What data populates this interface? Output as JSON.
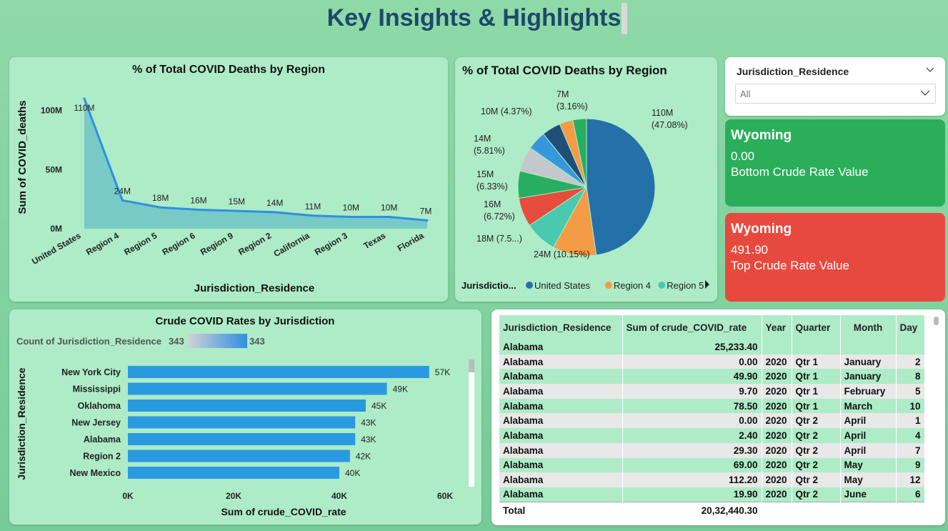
{
  "page": {
    "title": "Key Insights & Highlights"
  },
  "area_chart": {
    "chart_data": {
      "type": "area",
      "title": "% of Total COVID Deaths by Region",
      "xlabel": "Jurisdiction_Residence",
      "ylabel": "Sum of COVID_deaths",
      "categories": [
        "United States",
        "Region 4",
        "Region 5",
        "Region 6",
        "Region 9",
        "Region 2",
        "California",
        "Region 3",
        "Texas",
        "Florida"
      ],
      "values": [
        110,
        24,
        18,
        16,
        15,
        14,
        11,
        10,
        10,
        7
      ],
      "value_labels": [
        "110M",
        "24M",
        "18M",
        "16M",
        "15M",
        "14M",
        "11M",
        "10M",
        "10M",
        "7M"
      ],
      "yticks": [
        "0M",
        "50M",
        "100M"
      ],
      "ylim": [
        0,
        110
      ],
      "unit": "M"
    }
  },
  "pie_chart": {
    "chart_data": {
      "type": "pie",
      "title": "% of Total COVID Deaths by Region",
      "slices": [
        {
          "label": "110M",
          "pct": "(47.08%)",
          "value": 47.08,
          "color": "#2371a8"
        },
        {
          "label": "24M (10.15%)",
          "pct": "",
          "value": 10.15,
          "color": "#f39c45"
        },
        {
          "label": "18M (7.5...)",
          "pct": "",
          "value": 7.5,
          "color": "#48c9b0"
        },
        {
          "label": "16M",
          "pct": "(6.72%)",
          "value": 6.72,
          "color": "#e74c3c"
        },
        {
          "label": "15M",
          "pct": "(6.33%)",
          "value": 6.33,
          "color": "#27ae60"
        },
        {
          "label": "14M",
          "pct": "(5.81%)",
          "value": 5.81,
          "color": "#c3c8cc"
        },
        {
          "label": "10M (4.37%)",
          "pct": "",
          "value": 4.37,
          "color": "#3498db"
        },
        {
          "label": "10M",
          "pct": "",
          "value": 4.37,
          "color": "#1f4e79"
        },
        {
          "label": "7M",
          "pct": "(3.16%)",
          "value": 3.16,
          "color": "#f39c45"
        },
        {
          "label": "",
          "pct": "",
          "value": 3.16,
          "color": "#27ae60"
        }
      ],
      "legend_title": "Jurisdictio...",
      "legend": [
        {
          "name": "United States",
          "color": "#2371a8"
        },
        {
          "name": "Region 4",
          "color": "#f39c45"
        },
        {
          "name": "Region 5",
          "color": "#48c9b0"
        }
      ]
    }
  },
  "slicer": {
    "title": "Jurisdiction_Residence",
    "value": "All"
  },
  "cards": {
    "bottom": {
      "name": "Wyoming",
      "value": "0.00",
      "label": "Bottom Crude Rate Value"
    },
    "top": {
      "name": "Wyoming",
      "value": "491.90",
      "label": "Top Crude Rate Value"
    }
  },
  "bar_chart": {
    "chart_data": {
      "type": "bar",
      "title": "Crude COVID Rates by Jurisdiction",
      "xlabel": "Sum of crude_COVID_rate",
      "ylabel": "Jurisdiction_Residence",
      "categories": [
        "New York City",
        "Mississippi",
        "Oklahoma",
        "New Jersey",
        "Alabama",
        "Region 2",
        "New Mexico"
      ],
      "values": [
        57,
        49,
        45,
        43,
        43,
        42,
        40
      ],
      "value_labels": [
        "57K",
        "49K",
        "45K",
        "43K",
        "43K",
        "42K",
        "40K"
      ],
      "xticks": [
        "0K",
        "20K",
        "40K",
        "60K"
      ],
      "xlim": [
        0,
        60
      ],
      "count_label": "Count of Jurisdiction_Residence",
      "count_min": "343",
      "count_max": "343"
    }
  },
  "table": {
    "headers": [
      "Jurisdiction_Residence",
      "Sum of crude_COVID_rate",
      "Year",
      "Quarter",
      "Month",
      "Day"
    ],
    "rows": [
      [
        "Alabama",
        "25,233.40",
        "",
        "",
        "",
        ""
      ],
      [
        "Alabama",
        "0.00",
        "2020",
        "Qtr 1",
        "January",
        "2"
      ],
      [
        "Alabama",
        "49.90",
        "2020",
        "Qtr 1",
        "January",
        "8"
      ],
      [
        "Alabama",
        "9.70",
        "2020",
        "Qtr 1",
        "February",
        "5"
      ],
      [
        "Alabama",
        "78.50",
        "2020",
        "Qtr 1",
        "March",
        "10"
      ],
      [
        "Alabama",
        "0.00",
        "2020",
        "Qtr 2",
        "April",
        "1"
      ],
      [
        "Alabama",
        "2.40",
        "2020",
        "Qtr 2",
        "April",
        "4"
      ],
      [
        "Alabama",
        "29.30",
        "2020",
        "Qtr 2",
        "April",
        "7"
      ],
      [
        "Alabama",
        "69.00",
        "2020",
        "Qtr 2",
        "May",
        "9"
      ],
      [
        "Alabama",
        "112.20",
        "2020",
        "Qtr 2",
        "May",
        "12"
      ],
      [
        "Alabama",
        "19.90",
        "2020",
        "Qtr 2",
        "June",
        "6"
      ]
    ],
    "total_label": "Total",
    "total_value": "20,32,440.30"
  }
}
